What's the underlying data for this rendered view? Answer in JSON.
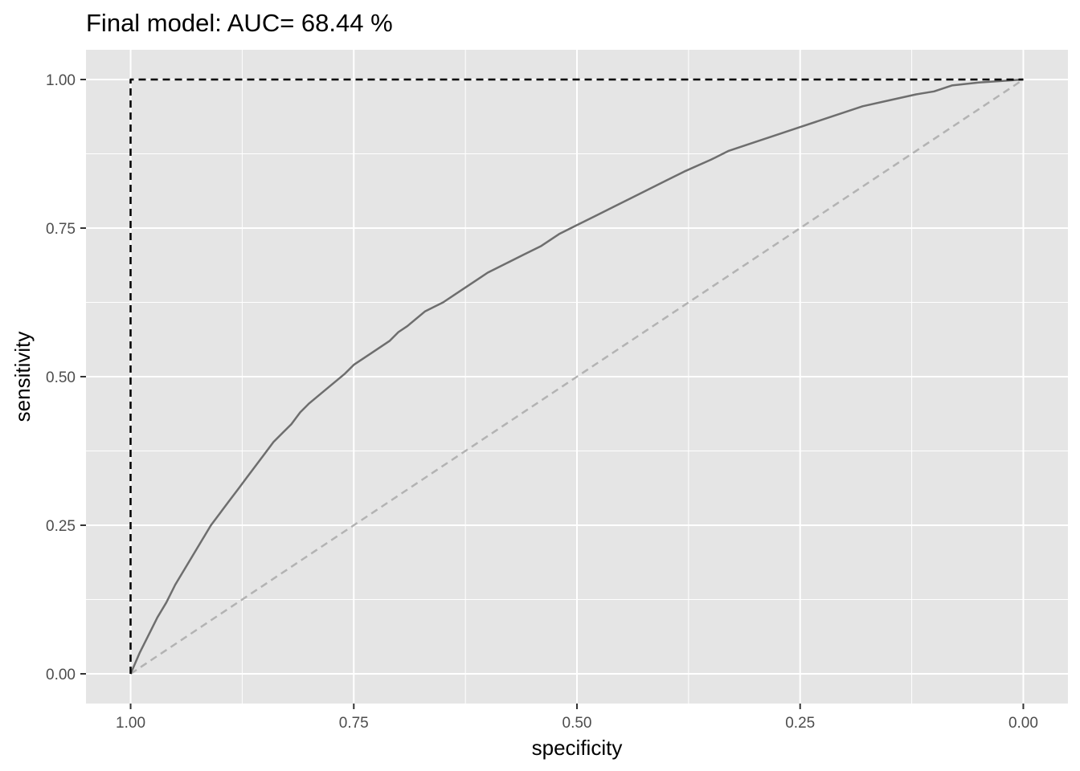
{
  "chart_data": {
    "type": "line",
    "title": "Final model: AUC= 68.44 %",
    "xlabel": "specificity",
    "ylabel": "sensitivity",
    "x_reversed": true,
    "xlim": [
      1.05,
      -0.05
    ],
    "ylim": [
      -0.05,
      1.05
    ],
    "x_ticks": [
      1.0,
      0.75,
      0.5,
      0.25,
      0.0
    ],
    "x_tick_labels": [
      "1.00",
      "0.75",
      "0.50",
      "0.25",
      "0.00"
    ],
    "y_ticks": [
      0.0,
      0.25,
      0.5,
      0.75,
      1.0
    ],
    "y_tick_labels": [
      "0.00",
      "0.25",
      "0.50",
      "0.75",
      "1.00"
    ],
    "x_minor": [
      0.875,
      0.625,
      0.375,
      0.125
    ],
    "y_minor": [
      0.125,
      0.375,
      0.625,
      0.875
    ],
    "grid": true,
    "legend": "none",
    "colors": {
      "panel": "#e5e5e5",
      "grid": "#ffffff",
      "roc_curve": "#6e6e6e",
      "perfect": "#000000",
      "chance": "#b3b3b3",
      "tick_text": "#4d4d4d",
      "tick_mark": "#333333"
    },
    "series": [
      {
        "role": "roc",
        "style": "solid",
        "x": [
          1.0,
          0.99,
          0.98,
          0.97,
          0.96,
          0.95,
          0.94,
          0.93,
          0.92,
          0.91,
          0.9,
          0.89,
          0.88,
          0.87,
          0.86,
          0.85,
          0.84,
          0.83,
          0.82,
          0.81,
          0.8,
          0.78,
          0.76,
          0.75,
          0.73,
          0.71,
          0.7,
          0.69,
          0.67,
          0.65,
          0.63,
          0.61,
          0.6,
          0.58,
          0.56,
          0.54,
          0.52,
          0.5,
          0.48,
          0.46,
          0.44,
          0.42,
          0.4,
          0.38,
          0.35,
          0.33,
          0.3,
          0.28,
          0.25,
          0.22,
          0.2,
          0.18,
          0.15,
          0.12,
          0.1,
          0.08,
          0.05,
          0.02,
          0.0
        ],
        "y": [
          0.0,
          0.035,
          0.065,
          0.095,
          0.12,
          0.15,
          0.175,
          0.2,
          0.225,
          0.25,
          0.27,
          0.29,
          0.31,
          0.33,
          0.35,
          0.37,
          0.39,
          0.405,
          0.42,
          0.44,
          0.455,
          0.48,
          0.505,
          0.52,
          0.54,
          0.56,
          0.575,
          0.585,
          0.61,
          0.625,
          0.645,
          0.665,
          0.675,
          0.69,
          0.705,
          0.72,
          0.74,
          0.755,
          0.77,
          0.785,
          0.8,
          0.815,
          0.83,
          0.845,
          0.865,
          0.88,
          0.895,
          0.905,
          0.92,
          0.935,
          0.945,
          0.955,
          0.965,
          0.975,
          0.98,
          0.99,
          0.995,
          0.998,
          1.0
        ]
      },
      {
        "role": "perfect",
        "style": "dashed",
        "x": [
          1.0,
          1.0,
          0.0
        ],
        "y": [
          0.0,
          1.0,
          1.0
        ]
      },
      {
        "role": "chance",
        "style": "dashed",
        "x": [
          1.0,
          0.0
        ],
        "y": [
          0.0,
          1.0
        ]
      }
    ]
  }
}
